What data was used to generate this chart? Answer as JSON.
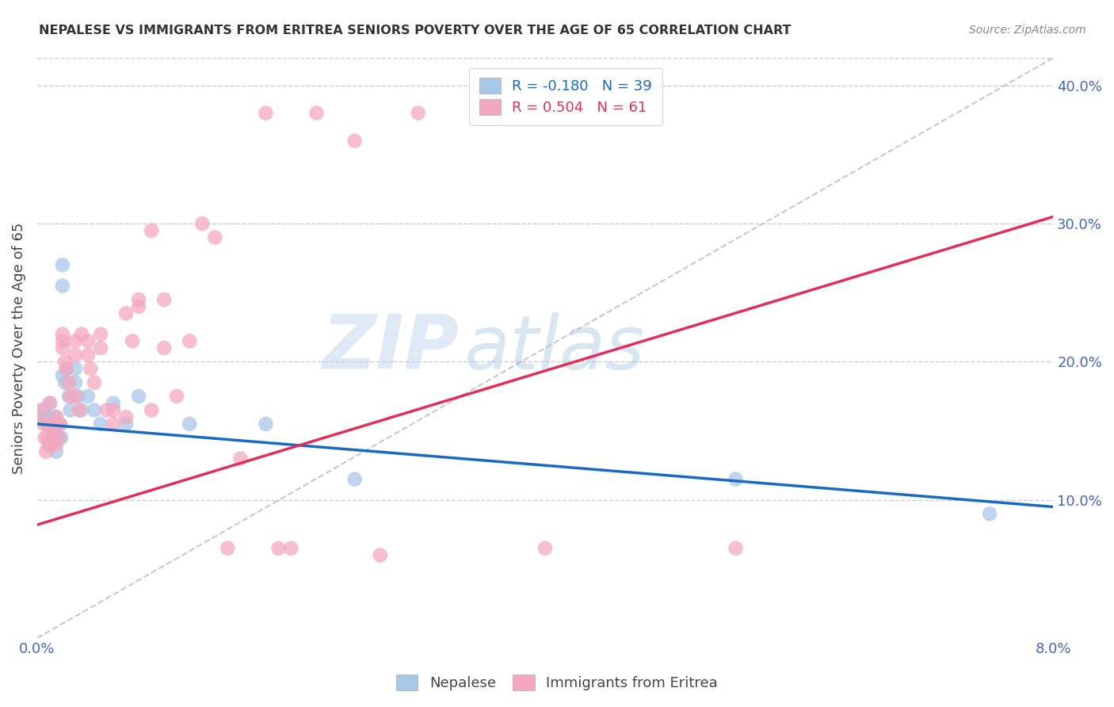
{
  "title": "NEPALESE VS IMMIGRANTS FROM ERITREA SENIORS POVERTY OVER THE AGE OF 65 CORRELATION CHART",
  "source": "Source: ZipAtlas.com",
  "ylabel": "Seniors Poverty Over the Age of 65",
  "legend_r_nep": "R = -0.180",
  "legend_n_nep": "N = 39",
  "legend_r_eri": "R = 0.504",
  "legend_n_eri": "N = 61",
  "nepalese_color": "#a8c8e8",
  "eritrea_color": "#f4a8c0",
  "nepalese_line_color": "#1a6bbf",
  "eritrea_line_color": "#e0305a",
  "background_color": "#ffffff",
  "xlim": [
    0.0,
    0.08
  ],
  "ylim": [
    0.0,
    0.42
  ],
  "right_yticks": [
    0.1,
    0.2,
    0.3,
    0.4
  ],
  "right_yticklabels": [
    "10.0%",
    "20.0%",
    "30.0%",
    "40.0%"
  ],
  "watermark_zip": "ZIP",
  "watermark_atlas": "atlas",
  "nep_trend_x0": 0.0,
  "nep_trend_y0": 0.155,
  "nep_trend_x1": 0.08,
  "nep_trend_y1": 0.095,
  "eri_trend_x0": 0.0,
  "eri_trend_y0": 0.082,
  "eri_trend_x1": 0.08,
  "eri_trend_y1": 0.305,
  "nepalese_x": [
    0.0003,
    0.0005,
    0.0006,
    0.0007,
    0.0008,
    0.0009,
    0.001,
    0.001,
    0.0012,
    0.0013,
    0.0014,
    0.0015,
    0.0015,
    0.0016,
    0.0017,
    0.0018,
    0.0019,
    0.002,
    0.002,
    0.002,
    0.0022,
    0.0023,
    0.0025,
    0.0026,
    0.003,
    0.003,
    0.0032,
    0.0035,
    0.004,
    0.0045,
    0.005,
    0.006,
    0.007,
    0.008,
    0.012,
    0.018,
    0.025,
    0.055,
    0.075
  ],
  "nepalese_y": [
    0.16,
    0.165,
    0.16,
    0.155,
    0.16,
    0.155,
    0.17,
    0.14,
    0.155,
    0.145,
    0.15,
    0.16,
    0.135,
    0.155,
    0.145,
    0.155,
    0.145,
    0.27,
    0.255,
    0.19,
    0.185,
    0.195,
    0.175,
    0.165,
    0.195,
    0.185,
    0.175,
    0.165,
    0.175,
    0.165,
    0.155,
    0.17,
    0.155,
    0.175,
    0.155,
    0.155,
    0.115,
    0.115,
    0.09
  ],
  "eritrea_x": [
    0.0003,
    0.0005,
    0.0006,
    0.0007,
    0.0008,
    0.0009,
    0.001,
    0.001,
    0.001,
    0.0012,
    0.0013,
    0.0015,
    0.0015,
    0.0016,
    0.0017,
    0.0018,
    0.002,
    0.002,
    0.002,
    0.0022,
    0.0023,
    0.0025,
    0.0026,
    0.003,
    0.003,
    0.003,
    0.0033,
    0.0035,
    0.004,
    0.004,
    0.0042,
    0.0045,
    0.005,
    0.005,
    0.0055,
    0.006,
    0.006,
    0.007,
    0.007,
    0.0075,
    0.008,
    0.008,
    0.009,
    0.009,
    0.01,
    0.01,
    0.011,
    0.012,
    0.013,
    0.014,
    0.015,
    0.016,
    0.018,
    0.019,
    0.02,
    0.022,
    0.025,
    0.027,
    0.03,
    0.04,
    0.055
  ],
  "eritrea_y": [
    0.165,
    0.155,
    0.145,
    0.135,
    0.145,
    0.14,
    0.17,
    0.155,
    0.14,
    0.155,
    0.145,
    0.16,
    0.14,
    0.155,
    0.145,
    0.155,
    0.22,
    0.215,
    0.21,
    0.2,
    0.195,
    0.185,
    0.175,
    0.215,
    0.205,
    0.175,
    0.165,
    0.22,
    0.215,
    0.205,
    0.195,
    0.185,
    0.22,
    0.21,
    0.165,
    0.165,
    0.155,
    0.235,
    0.16,
    0.215,
    0.245,
    0.24,
    0.295,
    0.165,
    0.21,
    0.245,
    0.175,
    0.215,
    0.3,
    0.29,
    0.065,
    0.13,
    0.38,
    0.065,
    0.065,
    0.38,
    0.36,
    0.06,
    0.38,
    0.065,
    0.065
  ]
}
